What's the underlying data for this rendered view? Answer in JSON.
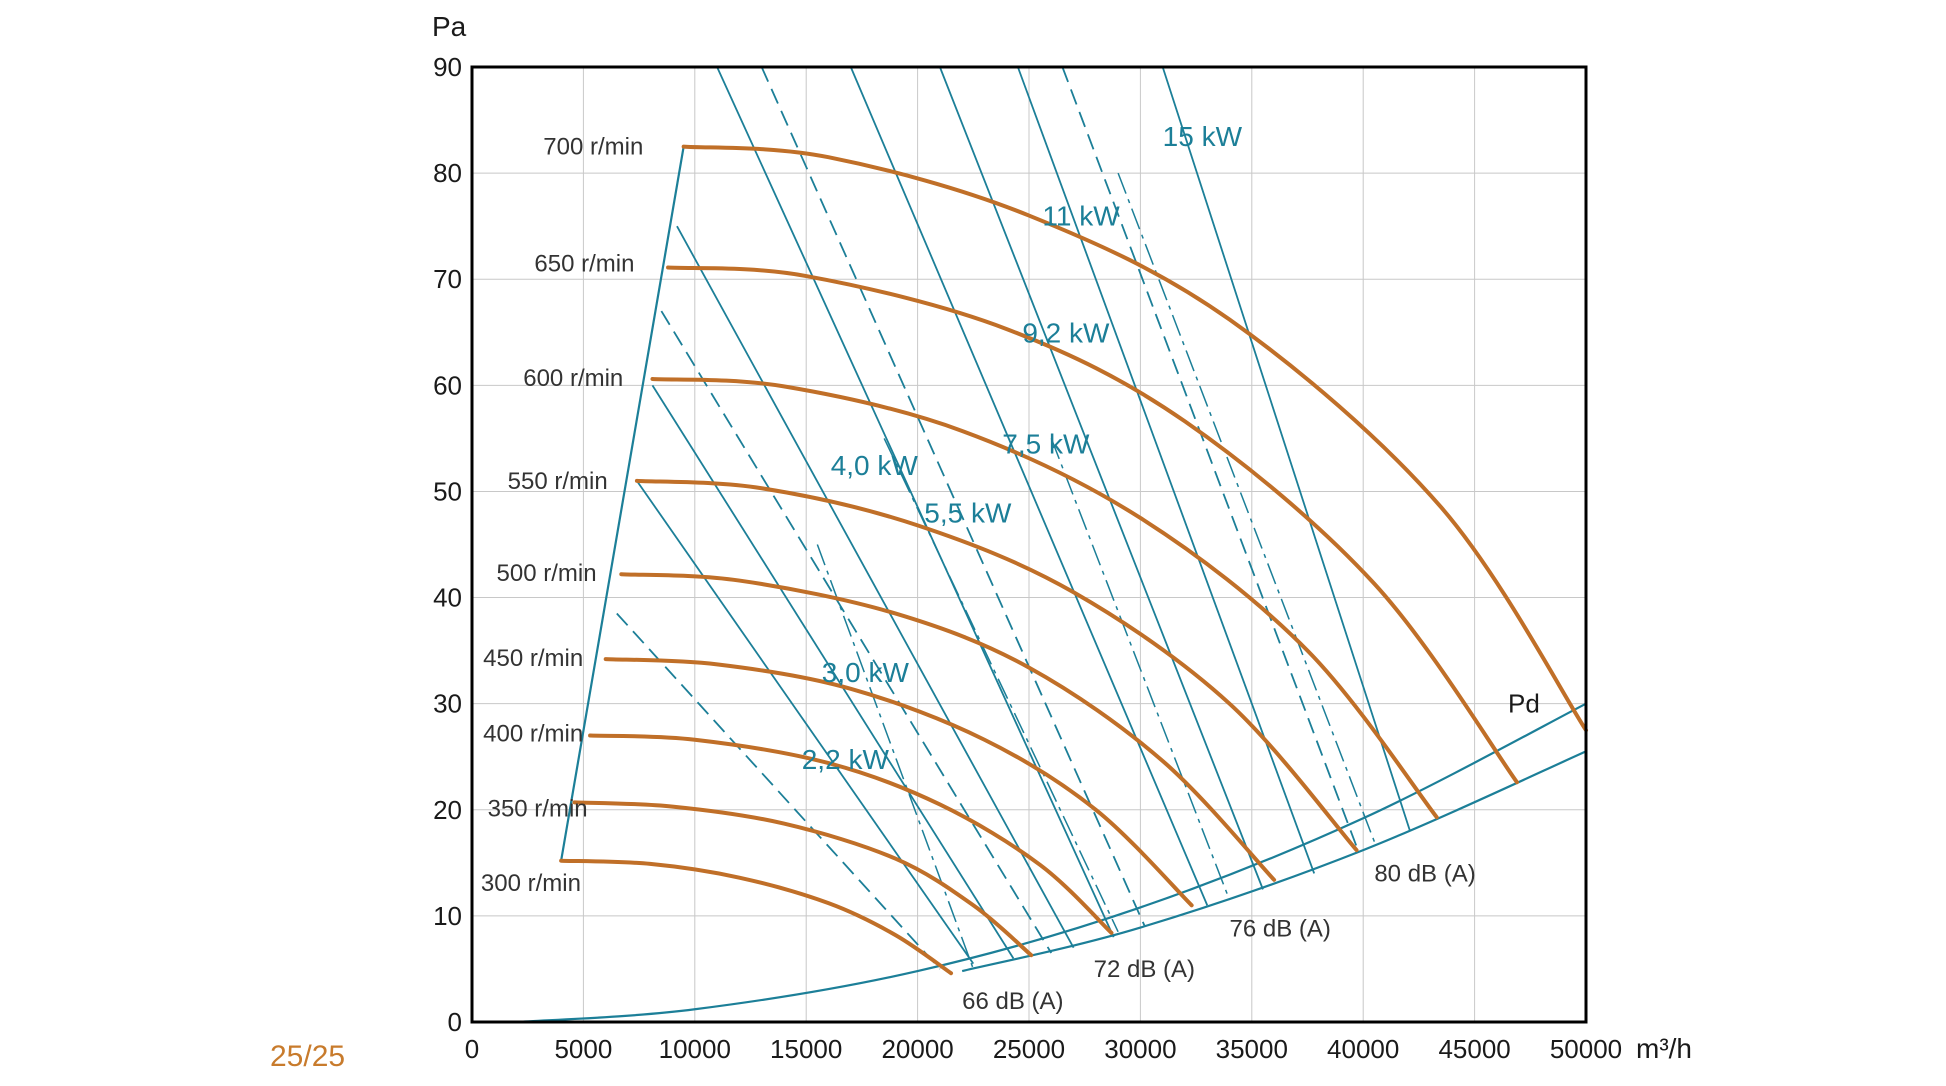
{
  "page": {
    "page_number": "25/25"
  },
  "colors": {
    "rpm_curve": "#c06f28",
    "power_curve": "#1c7f98",
    "grid": "#c8c8c8",
    "axis": "#000000",
    "page_number": "#c87b2c"
  },
  "chart_data": {
    "type": "line",
    "xlabel": "m³/h",
    "ylabel": "Pa",
    "xlim": [
      0,
      50000
    ],
    "ylim": [
      0,
      90
    ],
    "x_ticks": [
      "0",
      "5000",
      "10000",
      "15000",
      "20000",
      "25000",
      "30000",
      "35000",
      "40000",
      "45000",
      "50000"
    ],
    "y_ticks": [
      "0",
      "10",
      "20",
      "30",
      "40",
      "50",
      "60",
      "70",
      "80",
      "90"
    ],
    "grid": true,
    "rpm_series": [
      {
        "name": "300 r/min",
        "x": [
          4000,
          8000,
          12000,
          16000,
          19000,
          21500
        ],
        "y": [
          15.2,
          14.9,
          13.6,
          11.2,
          8.2,
          4.6
        ]
      },
      {
        "name": "350 r/min",
        "x": [
          4600,
          9000,
          14000,
          19000,
          22500,
          25100
        ],
        "y": [
          20.7,
          20.3,
          18.7,
          15.4,
          11.0,
          6.3
        ]
      },
      {
        "name": "400 r/min",
        "x": [
          5300,
          10000,
          16000,
          21000,
          25500,
          28700
        ],
        "y": [
          27.0,
          26.6,
          24.4,
          20.5,
          14.8,
          8.4
        ]
      },
      {
        "name": "450 r/min",
        "x": [
          6000,
          11000,
          17000,
          23000,
          28000,
          32300
        ],
        "y": [
          34.2,
          33.7,
          31.4,
          26.6,
          20.0,
          11.0
        ]
      },
      {
        "name": "500 r/min",
        "x": [
          6700,
          12000,
          19000,
          25000,
          31000,
          36000
        ],
        "y": [
          42.2,
          41.6,
          38.5,
          33.4,
          24.6,
          13.4
        ]
      },
      {
        "name": "550 r/min",
        "x": [
          7400,
          13000,
          20000,
          27000,
          34000,
          39700
        ],
        "y": [
          51.0,
          50.3,
          46.8,
          40.5,
          30.0,
          16.2
        ]
      },
      {
        "name": "600 r/min",
        "x": [
          8100,
          14000,
          22000,
          30000,
          37500,
          43300
        ],
        "y": [
          60.6,
          59.9,
          55.7,
          47.5,
          35.0,
          19.3
        ]
      },
      {
        "name": "650 r/min",
        "x": [
          8800,
          15000,
          24000,
          32000,
          40500,
          46900
        ],
        "y": [
          71.1,
          70.3,
          65.3,
          56.6,
          41.3,
          22.6
        ]
      },
      {
        "name": "700 r/min",
        "x": [
          9500,
          16000,
          25000,
          34000,
          43500,
          50000
        ],
        "y": [
          82.5,
          81.5,
          76.0,
          66.2,
          48.5,
          27.5
        ]
      }
    ],
    "boundary": {
      "left_edge": {
        "x": [
          4000,
          9500
        ],
        "y": [
          15.2,
          82.5
        ]
      },
      "pd_upper": {
        "x": [
          2000,
          10000,
          20000,
          30000,
          40000,
          50000
        ],
        "y": [
          0.0,
          1.2,
          4.8,
          10.8,
          19.2,
          30.0
        ]
      },
      "pd_lower": {
        "x": [
          22000,
          30000,
          40000,
          50000
        ],
        "y": [
          4.8,
          8.9,
          16.2,
          25.5
        ]
      },
      "pd_label": "Pd"
    },
    "power_lines": [
      {
        "x": [
          6500,
          21000
        ],
        "y": [
          38.5,
          5.0
        ],
        "dashed": true
      },
      {
        "x": [
          7400,
          22500
        ],
        "y": [
          51.0,
          5.5
        ],
        "dashed": false
      },
      {
        "x": [
          8100,
          24300
        ],
        "y": [
          60.0,
          6.0
        ],
        "dashed": false
      },
      {
        "x": [
          8500,
          26000
        ],
        "y": [
          67.0,
          6.5
        ],
        "dashed": true
      },
      {
        "x": [
          9200,
          27000
        ],
        "y": [
          75.0,
          7.0
        ],
        "dashed": false
      },
      {
        "x": [
          11000,
          28800
        ],
        "y": [
          90.0,
          8.0
        ],
        "dashed": false
      },
      {
        "x": [
          13000,
          30200
        ],
        "y": [
          90.0,
          9.0
        ],
        "dashed": true
      },
      {
        "x": [
          17000,
          33000
        ],
        "y": [
          90.0,
          11.0
        ],
        "dashed": false
      },
      {
        "x": [
          21000,
          35500
        ],
        "y": [
          90.0,
          12.5
        ],
        "dashed": false
      },
      {
        "x": [
          24500,
          37800
        ],
        "y": [
          90.0,
          14.0
        ],
        "dashed": false
      },
      {
        "x": [
          26500,
          39800
        ],
        "y": [
          90.0,
          16.0
        ],
        "dashed": true
      },
      {
        "x": [
          31000,
          42100
        ],
        "y": [
          90.0,
          18.0
        ],
        "dashed": false
      }
    ],
    "db_lines": [
      {
        "x": [
          15500,
          22500
        ],
        "y": [
          45.0,
          5.0
        ],
        "dashed": true
      },
      {
        "x": [
          18500,
          29000
        ],
        "y": [
          55.0,
          8.5
        ],
        "dashed": true
      },
      {
        "x": [
          26000,
          34000
        ],
        "y": [
          55.0,
          11.5
        ],
        "dashed": true
      },
      {
        "x": [
          29000,
          40500
        ],
        "y": [
          80.0,
          17.0
        ],
        "dashed": true
      }
    ],
    "power_labels": [
      {
        "text": "15  kW",
        "x": 31000,
        "y": 83.5
      },
      {
        "text": "11 kW",
        "x": 25600,
        "y": 76.0
      },
      {
        "text": "9,2 kW",
        "x": 24700,
        "y": 65.0
      },
      {
        "text": "7,5 kW",
        "x": 23800,
        "y": 54.5
      },
      {
        "text": "5,5 kW",
        "x": 20300,
        "y": 48.0
      },
      {
        "text": "4,0 kW",
        "x": 16100,
        "y": 52.5
      },
      {
        "text": "3,0 kW",
        "x": 15700,
        "y": 33.0
      },
      {
        "text": "2,2 kW",
        "x": 14800,
        "y": 24.8
      }
    ],
    "rpm_labels": [
      {
        "text": "700 r/min",
        "x": 3200,
        "y": 82.5
      },
      {
        "text": "650 r/min",
        "x": 2800,
        "y": 71.5
      },
      {
        "text": "600 r/min",
        "x": 2300,
        "y": 60.7
      },
      {
        "text": "550 r/min",
        "x": 1600,
        "y": 51.0
      },
      {
        "text": "500 r/min",
        "x": 1100,
        "y": 42.3
      },
      {
        "text": "450 r/min",
        "x": 500,
        "y": 34.3
      },
      {
        "text": "400 r/min",
        "x": 500,
        "y": 27.2
      },
      {
        "text": "350 r/min",
        "x": 700,
        "y": 20.1
      },
      {
        "text": "300 r/min",
        "x": 400,
        "y": 13.1
      }
    ],
    "db_labels": [
      {
        "text": "80 dB (A)",
        "x": 40500,
        "y": 14.0
      },
      {
        "text": "76 dB (A)",
        "x": 34000,
        "y": 8.8
      },
      {
        "text": "72 dB (A)",
        "x": 27900,
        "y": 5.0
      },
      {
        "text": "66 dB (A)",
        "x": 22000,
        "y": 2.0
      }
    ]
  }
}
